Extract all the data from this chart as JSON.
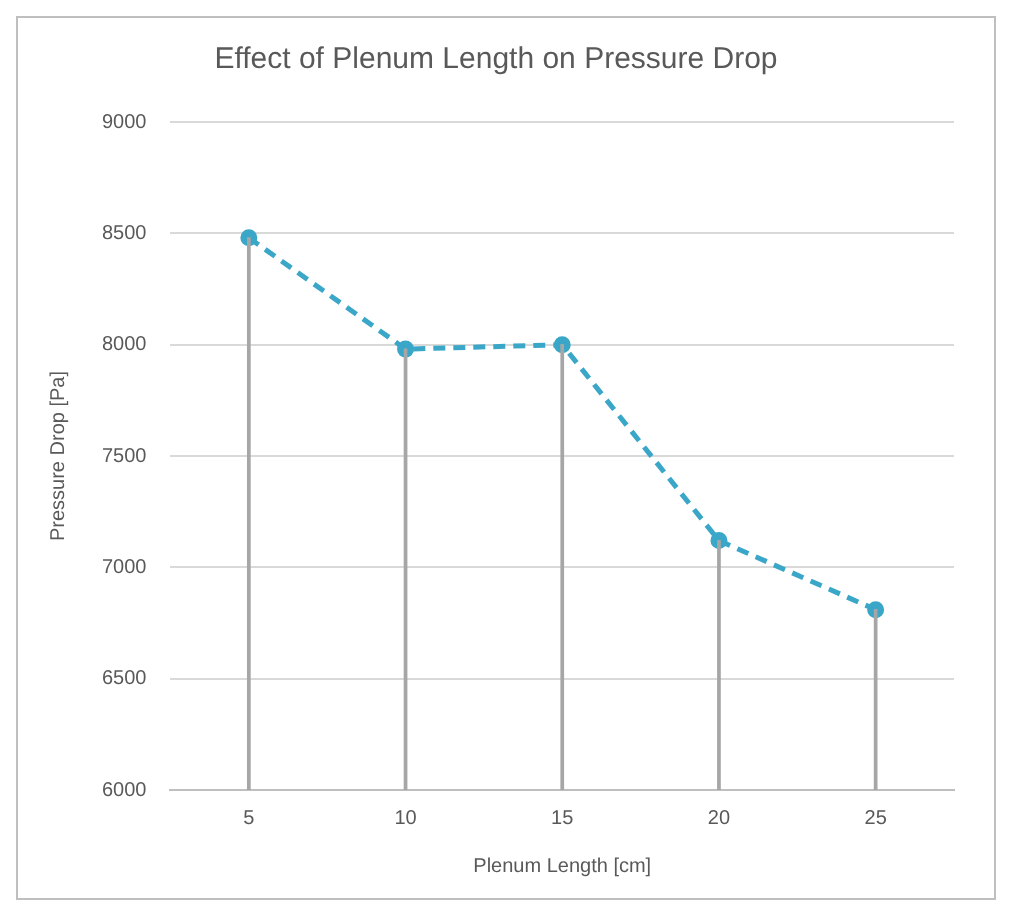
{
  "chart_data": {
    "type": "line",
    "title": "Effect of Plenum Length on Pressure Drop",
    "xlabel": "Plenum Length [cm]",
    "ylabel": "Pressure Drop [Pa]",
    "categories": [
      "5",
      "10",
      "15",
      "20",
      "25"
    ],
    "series": [
      {
        "type": "bar",
        "color": "#a6a6a6",
        "values": [
          8480,
          7980,
          8000,
          7120,
          6810
        ]
      },
      {
        "color": "#3aa6c8",
        "values": [
          8480,
          7980,
          8000,
          7120,
          6810
        ]
      }
    ],
    "ylim": [
      6000,
      9000
    ],
    "yticks": [
      6000,
      6500,
      7000,
      7500,
      8000,
      8500,
      9000
    ],
    "grid": "y",
    "legend": false,
    "marker": "circle",
    "line_style": "dashed"
  }
}
